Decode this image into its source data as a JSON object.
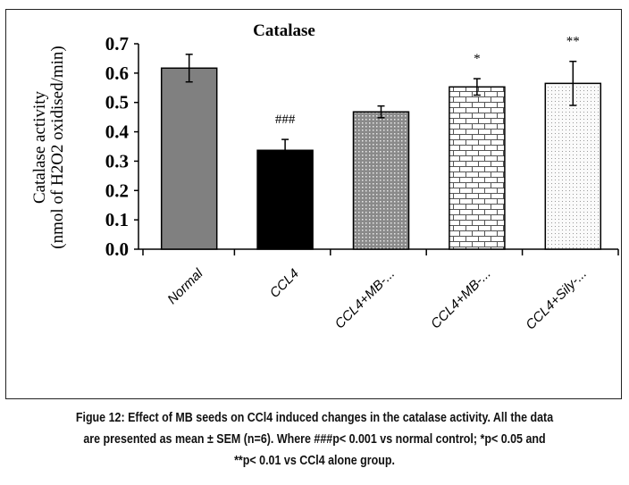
{
  "chart_data": {
    "type": "bar",
    "title": "Catalase",
    "xlabel": "",
    "ylabel_line1": "Catalase activity",
    "ylabel_line2": "(nmol of H2O2 oxidised/min)",
    "ylim": [
      0,
      0.7
    ],
    "yticks": [
      "0.0",
      "0.1",
      "0.2",
      "0.3",
      "0.4",
      "0.5",
      "0.6",
      "0.7"
    ],
    "categories": [
      "Normal",
      "CCL4",
      "CCL4+MB-...",
      "CCL4+MB-...",
      "CCL4+Sily-..."
    ],
    "values": [
      0.617,
      0.337,
      0.468,
      0.553,
      0.565
    ],
    "errors": [
      0.047,
      0.037,
      0.02,
      0.028,
      0.075
    ],
    "annotations": [
      "",
      "###",
      "",
      "*",
      "**"
    ],
    "patterns": [
      "solid-gray",
      "solid-black",
      "dense-dots",
      "bricks",
      "light-dots"
    ],
    "grid": false,
    "legend": "none"
  },
  "caption": {
    "line1": "Figue 12: Effect of MB seeds on CCl4 induced changes in the catalase activity. All the data",
    "line2": "are presented as mean ± SEM (n=6). Where ###p< 0.001 vs normal control; *p< 0.05 and",
    "line3": "**p< 0.01 vs CCl4 alone group."
  }
}
